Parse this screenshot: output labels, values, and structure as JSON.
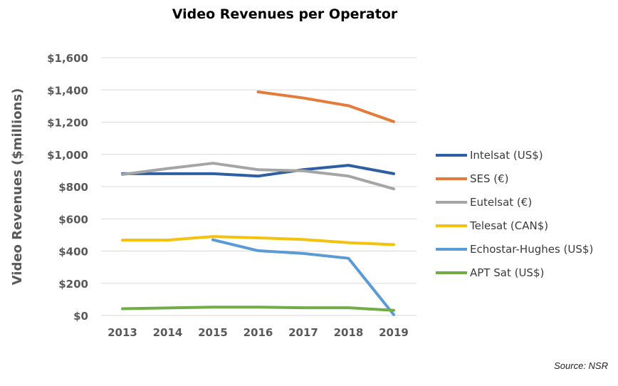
{
  "chart_data": {
    "type": "line",
    "title": "Video Revenues per Operator",
    "xlabel": "",
    "ylabel": "Video Revenues ($millions)",
    "categories": [
      "2013",
      "2014",
      "2015",
      "2016",
      "2017",
      "2018",
      "2019"
    ],
    "ylim": [
      0,
      1600
    ],
    "yticks": [
      0,
      200,
      400,
      600,
      800,
      1000,
      1200,
      1400,
      1600
    ],
    "ytick_labels": [
      "$0",
      "$200",
      "$400",
      "$600",
      "$800",
      "$1,000",
      "$1,200",
      "$1,400",
      "$1,600"
    ],
    "grid": true,
    "legend_position": "right",
    "series": [
      {
        "name": "Intelsat (US$)",
        "color": "#2E5FA3",
        "values": [
          880,
          880,
          880,
          865,
          905,
          932,
          880
        ]
      },
      {
        "name": "SES (€)",
        "color": "#E57B3A",
        "values": [
          null,
          null,
          null,
          1388,
          1350,
          1302,
          1203
        ]
      },
      {
        "name": "Eutelsat (€)",
        "color": "#A5A5A5",
        "values": [
          875,
          912,
          945,
          905,
          898,
          865,
          786
        ]
      },
      {
        "name": "Telesat (CAN$)",
        "color": "#F4C20D",
        "values": [
          468,
          468,
          490,
          482,
          472,
          452,
          440
        ]
      },
      {
        "name": "Echostar-Hughes (US$)",
        "color": "#5B9BD5",
        "values": [
          null,
          null,
          470,
          402,
          385,
          355,
          5
        ]
      },
      {
        "name": "APT Sat (US$)",
        "color": "#70AD47",
        "values": [
          42,
          47,
          52,
          52,
          48,
          48,
          32
        ]
      }
    ],
    "source": "Source:  NSR"
  }
}
